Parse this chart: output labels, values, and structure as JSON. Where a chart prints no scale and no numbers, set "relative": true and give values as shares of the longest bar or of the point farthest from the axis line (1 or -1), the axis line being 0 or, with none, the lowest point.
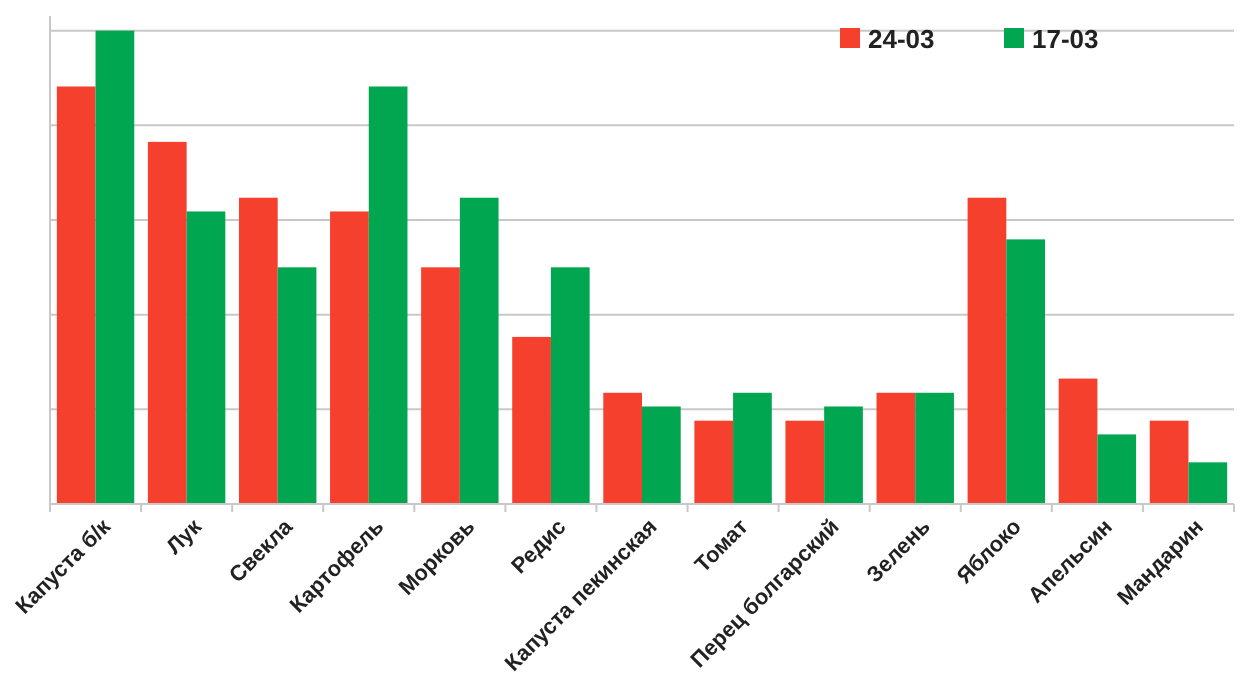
{
  "chart_data": {
    "type": "bar",
    "relative": true,
    "grid": "y",
    "legend": "top right",
    "categories": [
      "Капуста б/к",
      "Лук",
      "Свекла",
      "Картофель",
      "Морковь",
      "Редис",
      "Капуста пекинская",
      "Томат",
      "Перец болгарский",
      "Зелень",
      "Яблоко",
      "Апельсин",
      "Мандарин"
    ],
    "series": [
      {
        "name": "24-03",
        "color": "#f4402c",
        "values": [
          0.882,
          0.765,
          0.647,
          0.618,
          0.5,
          0.353,
          0.235,
          0.176,
          0.176,
          0.235,
          0.647,
          0.265,
          0.176
        ]
      },
      {
        "name": "17-03",
        "color": "#00a650",
        "values": [
          1,
          0.618,
          0.5,
          0.882,
          0.647,
          0.5,
          0.206,
          0.235,
          0.206,
          0.235,
          0.559,
          0.147,
          0.088
        ]
      }
    ]
  }
}
